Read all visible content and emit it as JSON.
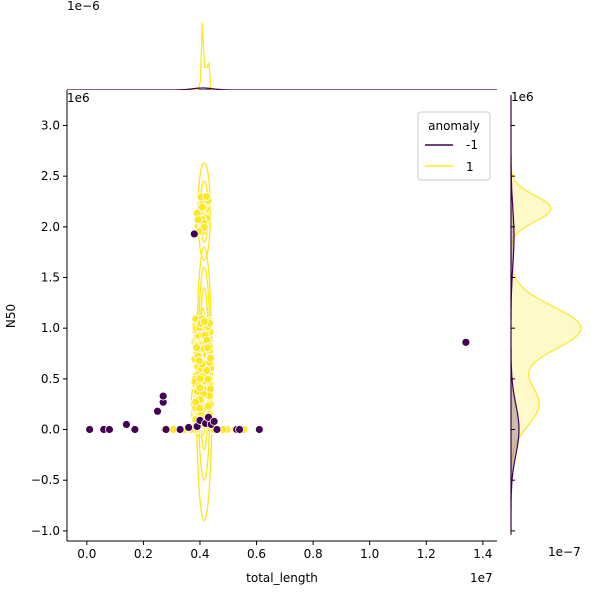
{
  "chart_data": {
    "type": "scatter",
    "subtype": "jointplot",
    "xlabel": "total_length",
    "ylabel": "N50",
    "x_offset": "1e7",
    "y_offset": "1e6",
    "xlim": [
      -0.07,
      1.45
    ],
    "ylim": [
      -1.1,
      3.35
    ],
    "x_ticks": [
      0.0,
      0.2,
      0.4,
      0.6,
      0.8,
      1.0,
      1.2,
      1.4
    ],
    "x_tick_labels": [
      "0.0",
      "0.2",
      "0.4",
      "0.6",
      "0.8",
      "1.0",
      "1.2",
      "1.4"
    ],
    "y_ticks": [
      -1.0,
      -0.5,
      0.0,
      0.5,
      1.0,
      1.5,
      2.0,
      2.5,
      3.0
    ],
    "y_tick_labels": [
      "−1.0",
      "−0.5",
      "0.0",
      "0.5",
      "1.0",
      "1.5",
      "2.0",
      "2.5",
      "3.0"
    ],
    "top_marginal_offset": "1e−6",
    "top_marginal_ylabel_offset": "1e7",
    "right_marginal_offset_top": "1e6",
    "right_marginal_offset_bottom": "1e−7",
    "legend": {
      "title": "anomaly",
      "location": "upper right",
      "entries": [
        {
          "label": "-1",
          "color": "#440154"
        },
        {
          "label": "1",
          "color": "#fde725"
        }
      ]
    },
    "series": [
      {
        "name": "-1",
        "color": "#440154",
        "points": [
          [
            0.01,
            0.0
          ],
          [
            0.06,
            0.0
          ],
          [
            0.08,
            0.0
          ],
          [
            0.14,
            0.05
          ],
          [
            0.17,
            0.0
          ],
          [
            0.25,
            0.18
          ],
          [
            0.27,
            0.27
          ],
          [
            0.27,
            0.33
          ],
          [
            0.28,
            0.0
          ],
          [
            0.33,
            0.0
          ],
          [
            0.36,
            0.02
          ],
          [
            0.38,
            1.93
          ],
          [
            0.39,
            0.03
          ],
          [
            0.4,
            0.09
          ],
          [
            0.42,
            0.06
          ],
          [
            0.43,
            0.12
          ],
          [
            0.44,
            0.05
          ],
          [
            0.45,
            0.08
          ],
          [
            0.46,
            0.0
          ],
          [
            0.53,
            0.0
          ],
          [
            0.54,
            0.0
          ],
          [
            0.61,
            0.0
          ],
          [
            1.34,
            0.86
          ]
        ]
      },
      {
        "name": "1",
        "color": "#fde725",
        "clusters": [
          {
            "x_range": [
              0.38,
              0.44
            ],
            "y_range": [
              0.0,
              1.1
            ]
          },
          {
            "x_range": [
              0.39,
              0.43
            ],
            "y_range": [
              1.95,
              2.3
            ]
          }
        ]
      }
    ]
  }
}
